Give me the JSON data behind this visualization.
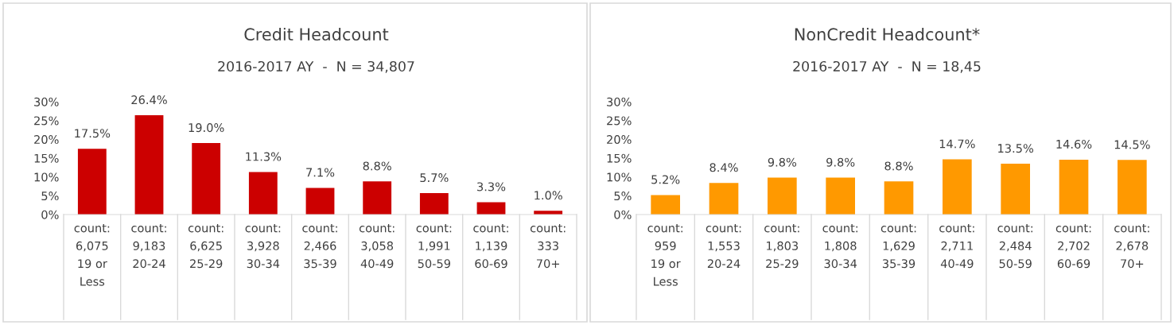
{
  "chart_data": [
    {
      "type": "bar",
      "title": "Credit Headcount",
      "subtitle": "2016-2017 AY  -  N = 34,807",
      "categories": [
        "count:\n6,075\n19 or\nLess",
        "count:\n9,183\n20-24",
        "count:\n6,625\n25-29",
        "count:\n3,928\n30-34",
        "count:\n2,466\n35-39",
        "count:\n3,058\n40-49",
        "count:\n1,991\n50-59",
        "count:\n1,139\n60-69",
        "count:\n333\n70+"
      ],
      "values": [
        17.5,
        26.4,
        19.0,
        11.3,
        7.1,
        8.8,
        5.7,
        3.3,
        1.0
      ],
      "value_labels": [
        "17.5%",
        "26.4%",
        "19.0%",
        "11.3%",
        "7.1%",
        "8.8%",
        "5.7%",
        "3.3%",
        "1.0%"
      ],
      "color": "#cc0000",
      "ylim": [
        0,
        30
      ],
      "yticks": [
        {
          "value": 0,
          "label": "0%"
        },
        {
          "value": 5,
          "label": "5%"
        },
        {
          "value": 10,
          "label": "10%"
        },
        {
          "value": 15,
          "label": "15%"
        },
        {
          "value": 20,
          "label": "20%"
        },
        {
          "value": 25,
          "label": "25%"
        },
        {
          "value": 30,
          "label": "30%"
        }
      ],
      "grid": false,
      "legend": false
    },
    {
      "type": "bar",
      "title": "NonCredit Headcount*",
      "subtitle": "2016-2017 AY  -  N = 18,45",
      "categories": [
        "count:\n959\n19 or\nLess",
        "count:\n1,553\n20-24",
        "count:\n1,803\n25-29",
        "count:\n1,808\n30-34",
        "count:\n1,629\n35-39",
        "count:\n2,711\n40-49",
        "count:\n2,484\n50-59",
        "count:\n2,702\n60-69",
        "count:\n2,678\n70+"
      ],
      "values": [
        5.2,
        8.4,
        9.8,
        9.8,
        8.8,
        14.7,
        13.5,
        14.6,
        14.5
      ],
      "value_labels": [
        "5.2%",
        "8.4%",
        "9.8%",
        "9.8%",
        "8.8%",
        "14.7%",
        "13.5%",
        "14.6%",
        "14.5%"
      ],
      "color": "#ff9900",
      "ylim": [
        0,
        30
      ],
      "yticks": [
        {
          "value": 0,
          "label": "0%"
        },
        {
          "value": 5,
          "label": "5%"
        },
        {
          "value": 10,
          "label": "10%"
        },
        {
          "value": 15,
          "label": "15%"
        },
        {
          "value": 20,
          "label": "20%"
        },
        {
          "value": 25,
          "label": "25%"
        },
        {
          "value": 30,
          "label": "30%"
        }
      ],
      "grid": false,
      "legend": false
    }
  ]
}
